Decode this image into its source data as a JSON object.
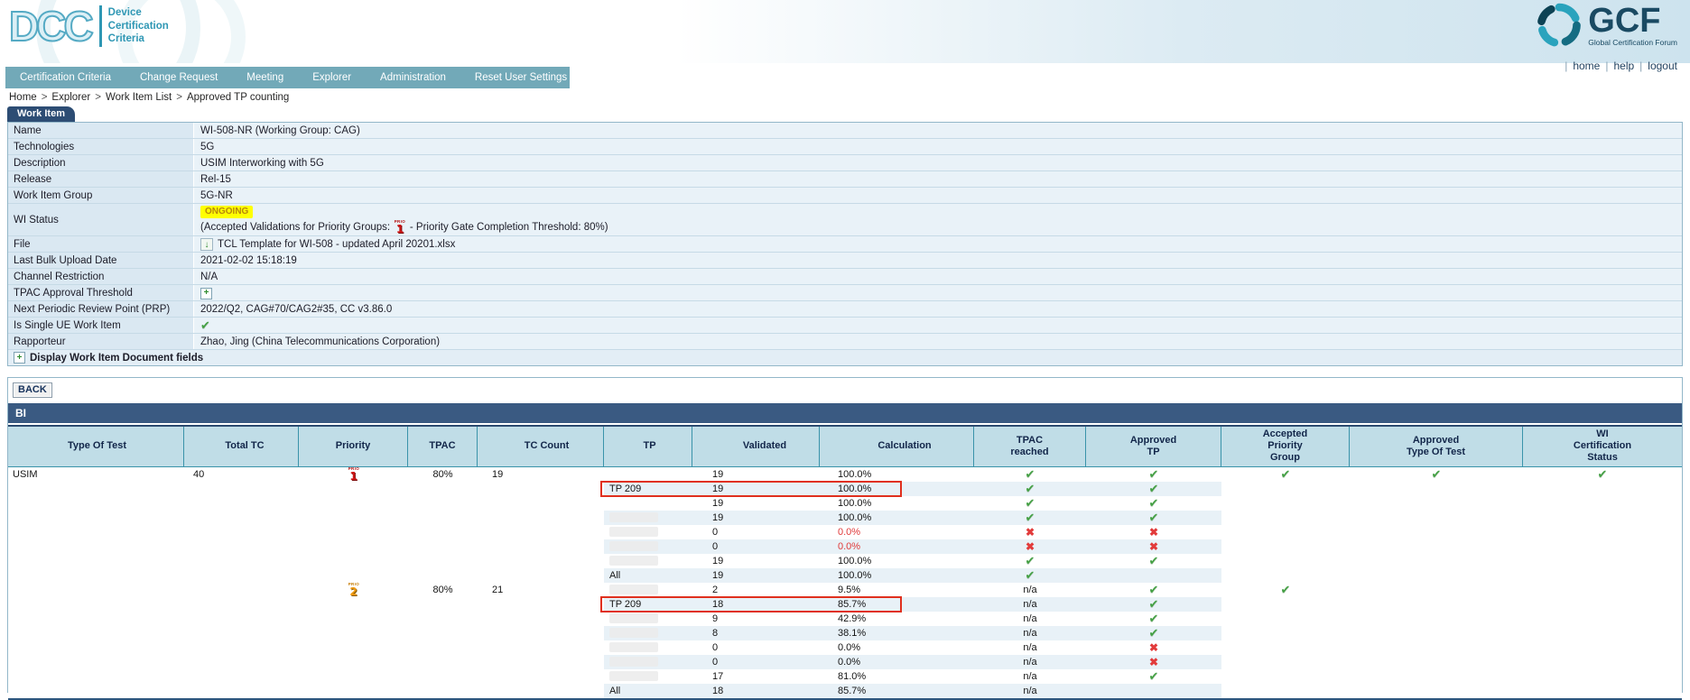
{
  "header": {
    "dcc_logo": {
      "acronym": "DCC",
      "lines": [
        "Device",
        "Certification",
        "Criteria"
      ]
    },
    "gcf_logo": {
      "acronym": "GCF",
      "tagline": "Global Certification Forum"
    },
    "links": [
      "home",
      "help",
      "logout"
    ]
  },
  "nav": {
    "items": [
      "Certification Criteria",
      "Change Request",
      "Meeting",
      "Explorer",
      "Administration",
      "Reset User Settings"
    ]
  },
  "breadcrumb": {
    "separator": ">",
    "items": [
      "Home",
      "Explorer",
      "Work Item List",
      "Approved TP counting"
    ]
  },
  "work_item": {
    "tab_label": "Work Item",
    "fields": [
      {
        "label": "Name",
        "kind": "text",
        "value": "WI-508-NR (Working Group: CAG)"
      },
      {
        "label": "Technologies",
        "kind": "text",
        "value": "5G"
      },
      {
        "label": "Description",
        "kind": "text",
        "value": "USIM Interworking with 5G"
      },
      {
        "label": "Release",
        "kind": "text",
        "value": "Rel-15"
      },
      {
        "label": "Work Item Group",
        "kind": "text",
        "value": "5G-NR"
      },
      {
        "label": "WI Status",
        "kind": "status",
        "badge": "ONGOING",
        "note_prefix": "(Accepted Validations for Priority Groups:",
        "note_suffix": "- Priority Gate Completion Threshold: 80%)",
        "priority_icon": "1"
      },
      {
        "label": "File",
        "kind": "file",
        "value": "TCL Template for WI-508 - updated April 20201.xlsx"
      },
      {
        "label": "Last Bulk Upload Date",
        "kind": "text",
        "value": "2021-02-02 15:18:19"
      },
      {
        "label": "Channel Restriction",
        "kind": "text",
        "value": "N/A"
      },
      {
        "label": "TPAC Approval Threshold",
        "kind": "expand",
        "value": ""
      },
      {
        "label": "Next Periodic Review Point (PRP)",
        "kind": "text",
        "value": "2022/Q2, CAG#70/CAG2#35, CC v3.86.0"
      },
      {
        "label": "Is Single UE Work Item",
        "kind": "check",
        "value": "check"
      },
      {
        "label": "Rapporteur",
        "kind": "text",
        "value": "Zhao, Jing (China Telecommunications Corporation)"
      }
    ],
    "footer_row": {
      "label": "Display Work Item Document fields"
    }
  },
  "bi": {
    "back_label": "BACK",
    "section_title": "BI",
    "columns": [
      [
        "Type Of Test"
      ],
      [
        "Total TC"
      ],
      [
        "Priority"
      ],
      [
        "TPAC"
      ],
      [
        "TC Count"
      ],
      [
        "TP"
      ],
      [
        "Validated"
      ],
      [
        "Calculation"
      ],
      [
        "TPAC",
        "reached"
      ],
      [
        "Approved",
        "TP"
      ],
      [
        "Accepted",
        "Priority",
        "Group"
      ],
      [
        "Approved",
        "Type Of Test"
      ],
      [
        "WI",
        "Certification",
        "Status"
      ]
    ],
    "rows": [
      {
        "type": "USIM",
        "total": "40",
        "priority": "1",
        "tpac": "80%",
        "tc": "19",
        "tp": "",
        "validated": "19",
        "calc": "100.0%",
        "neg": false,
        "reached": "check",
        "approved": "check",
        "acc_pg": "check",
        "app_tot": "check",
        "wi_cert": "check",
        "striped": false,
        "boxed": false,
        "tp_redacted": false
      },
      {
        "type": "",
        "total": "",
        "priority": "",
        "tpac": "",
        "tc": "",
        "tp": "TP 209",
        "validated": "19",
        "calc": "100.0%",
        "neg": false,
        "reached": "check",
        "approved": "check",
        "acc_pg": "",
        "app_tot": "",
        "wi_cert": "",
        "striped": true,
        "boxed": true,
        "tp_redacted": false
      },
      {
        "type": "",
        "total": "",
        "priority": "",
        "tpac": "",
        "tc": "",
        "tp": "",
        "validated": "19",
        "calc": "100.0%",
        "neg": false,
        "reached": "check",
        "approved": "check",
        "acc_pg": "",
        "app_tot": "",
        "wi_cert": "",
        "striped": false,
        "boxed": false,
        "tp_redacted": false
      },
      {
        "type": "",
        "total": "",
        "priority": "",
        "tpac": "",
        "tc": "",
        "tp": "",
        "validated": "19",
        "calc": "100.0%",
        "neg": false,
        "reached": "check",
        "approved": "check",
        "acc_pg": "",
        "app_tot": "",
        "wi_cert": "",
        "striped": true,
        "boxed": false,
        "tp_redacted": true
      },
      {
        "type": "",
        "total": "",
        "priority": "",
        "tpac": "",
        "tc": "",
        "tp": "",
        "validated": "0",
        "calc": "0.0%",
        "neg": true,
        "reached": "cross",
        "approved": "cross",
        "acc_pg": "",
        "app_tot": "",
        "wi_cert": "",
        "striped": false,
        "boxed": false,
        "tp_redacted": true
      },
      {
        "type": "",
        "total": "",
        "priority": "",
        "tpac": "",
        "tc": "",
        "tp": "",
        "validated": "0",
        "calc": "0.0%",
        "neg": true,
        "reached": "cross",
        "approved": "cross",
        "acc_pg": "",
        "app_tot": "",
        "wi_cert": "",
        "striped": true,
        "boxed": false,
        "tp_redacted": true
      },
      {
        "type": "",
        "total": "",
        "priority": "",
        "tpac": "",
        "tc": "",
        "tp": "",
        "validated": "19",
        "calc": "100.0%",
        "neg": false,
        "reached": "check",
        "approved": "check",
        "acc_pg": "",
        "app_tot": "",
        "wi_cert": "",
        "striped": false,
        "boxed": false,
        "tp_redacted": true
      },
      {
        "type": "",
        "total": "",
        "priority": "",
        "tpac": "",
        "tc": "",
        "tp": "All",
        "validated": "19",
        "calc": "100.0%",
        "neg": false,
        "reached": "check",
        "approved": "",
        "acc_pg": "",
        "app_tot": "",
        "wi_cert": "",
        "striped": true,
        "boxed": false,
        "tp_redacted": false
      },
      {
        "type": "",
        "total": "",
        "priority": "2",
        "tpac": "80%",
        "tc": "21",
        "tp": "",
        "validated": "2",
        "calc": "9.5%",
        "neg": false,
        "reached": "na",
        "approved": "check",
        "acc_pg": "check",
        "app_tot": "",
        "wi_cert": "",
        "striped": false,
        "boxed": false,
        "tp_redacted": true
      },
      {
        "type": "",
        "total": "",
        "priority": "",
        "tpac": "",
        "tc": "",
        "tp": "TP 209",
        "validated": "18",
        "calc": "85.7%",
        "neg": false,
        "reached": "na",
        "approved": "check",
        "acc_pg": "",
        "app_tot": "",
        "wi_cert": "",
        "striped": true,
        "boxed": true,
        "tp_redacted": false
      },
      {
        "type": "",
        "total": "",
        "priority": "",
        "tpac": "",
        "tc": "",
        "tp": "",
        "validated": "9",
        "calc": "42.9%",
        "neg": false,
        "reached": "na",
        "approved": "check",
        "acc_pg": "",
        "app_tot": "",
        "wi_cert": "",
        "striped": false,
        "boxed": false,
        "tp_redacted": true
      },
      {
        "type": "",
        "total": "",
        "priority": "",
        "tpac": "",
        "tc": "",
        "tp": "",
        "validated": "8",
        "calc": "38.1%",
        "neg": false,
        "reached": "na",
        "approved": "check",
        "acc_pg": "",
        "app_tot": "",
        "wi_cert": "",
        "striped": true,
        "boxed": false,
        "tp_redacted": true
      },
      {
        "type": "",
        "total": "",
        "priority": "",
        "tpac": "",
        "tc": "",
        "tp": "",
        "validated": "0",
        "calc": "0.0%",
        "neg": false,
        "reached": "na",
        "approved": "cross",
        "acc_pg": "",
        "app_tot": "",
        "wi_cert": "",
        "striped": false,
        "boxed": false,
        "tp_redacted": true
      },
      {
        "type": "",
        "total": "",
        "priority": "",
        "tpac": "",
        "tc": "",
        "tp": "",
        "validated": "0",
        "calc": "0.0%",
        "neg": false,
        "reached": "na",
        "approved": "cross",
        "acc_pg": "",
        "app_tot": "",
        "wi_cert": "",
        "striped": true,
        "boxed": false,
        "tp_redacted": true
      },
      {
        "type": "",
        "total": "",
        "priority": "",
        "tpac": "",
        "tc": "",
        "tp": "",
        "validated": "17",
        "calc": "81.0%",
        "neg": false,
        "reached": "na",
        "approved": "check",
        "acc_pg": "",
        "app_tot": "",
        "wi_cert": "",
        "striped": false,
        "boxed": false,
        "tp_redacted": true
      },
      {
        "type": "",
        "total": "",
        "priority": "",
        "tpac": "",
        "tc": "",
        "tp": "All",
        "validated": "18",
        "calc": "85.7%",
        "neg": false,
        "reached": "na",
        "approved": "",
        "acc_pg": "",
        "app_tot": "",
        "wi_cert": "",
        "striped": true,
        "boxed": false,
        "tp_redacted": false
      }
    ]
  },
  "colors": {
    "nav_teal": "#72a9b8",
    "tab_navy": "#2d4d74",
    "bi_bar_navy": "#3a5a82",
    "header_cell_bg": "#c0dde7",
    "row_stripe": "#e8f1f7",
    "badge_bg": "#ffff00",
    "badge_text": "#b8860b",
    "check_green": "#44a044",
    "cross_red": "#e23b3b",
    "negative_text": "#e03b3b",
    "annotation_box_red": "#e0301e",
    "priority1_red": "#cf1616",
    "priority2_orange": "#f09a10"
  }
}
